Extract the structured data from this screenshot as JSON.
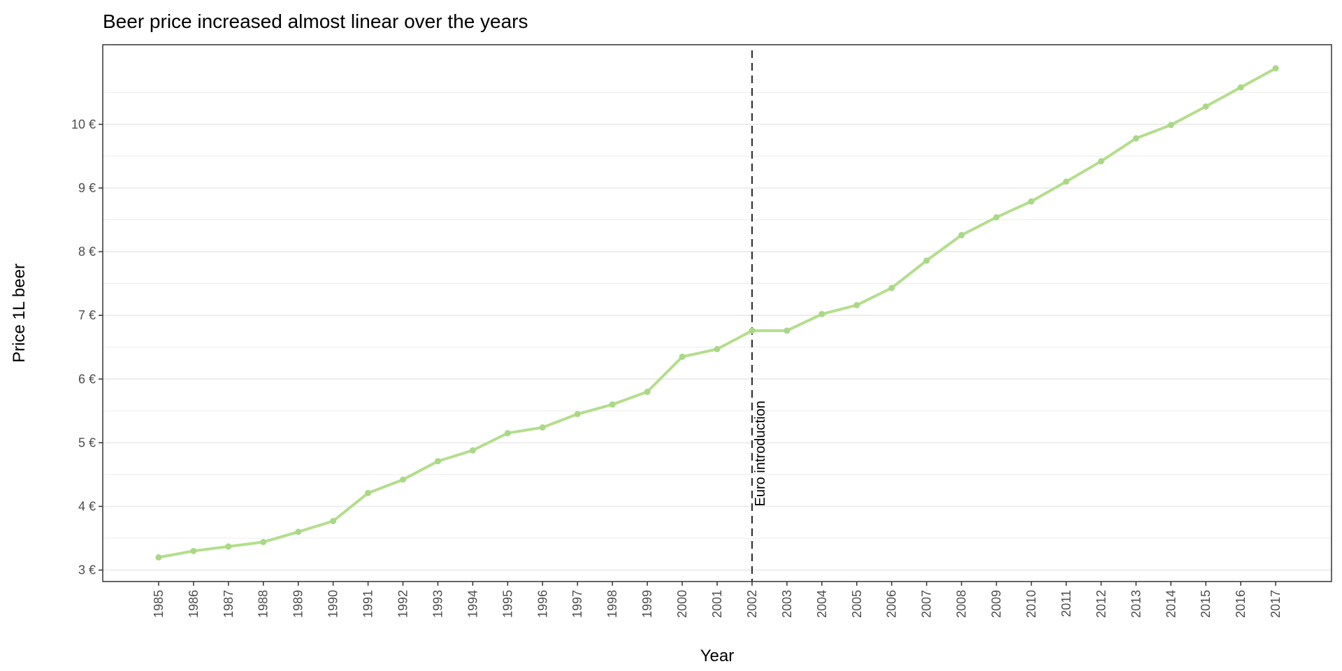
{
  "chart_data": {
    "type": "line",
    "title": "Beer price increased almost linear over the years",
    "xlabel": "Year",
    "ylabel": "Price 1L beer",
    "x": [
      1985,
      1986,
      1987,
      1988,
      1989,
      1990,
      1991,
      1992,
      1993,
      1994,
      1995,
      1996,
      1997,
      1998,
      1999,
      2000,
      2001,
      2002,
      2003,
      2004,
      2005,
      2006,
      2007,
      2008,
      2009,
      2010,
      2011,
      2012,
      2013,
      2014,
      2015,
      2016,
      2017
    ],
    "series": [
      {
        "values": [
          3.2,
          3.3,
          3.37,
          3.44,
          3.6,
          3.77,
          4.21,
          4.42,
          4.71,
          4.88,
          5.15,
          5.24,
          5.45,
          5.6,
          5.8,
          6.35,
          6.47,
          6.76,
          6.76,
          7.02,
          7.16,
          7.43,
          7.86,
          8.26,
          8.54,
          8.79,
          9.1,
          9.42,
          9.78,
          9.99,
          10.28,
          10.58,
          10.88
        ]
      }
    ],
    "yticks": [
      3,
      4,
      5,
      6,
      7,
      8,
      9,
      10
    ],
    "ytick_suffix": " €",
    "ylim": [
      2.82,
      11.25
    ],
    "grid": true,
    "annotation": {
      "x": 2002,
      "label": "Euro introduction",
      "style": "dashed"
    },
    "colors": {
      "line": "#b3de8c",
      "point": "#a9d886",
      "vline": "#333333",
      "grid": "#ebebeb",
      "panel_border": "#333333"
    }
  }
}
